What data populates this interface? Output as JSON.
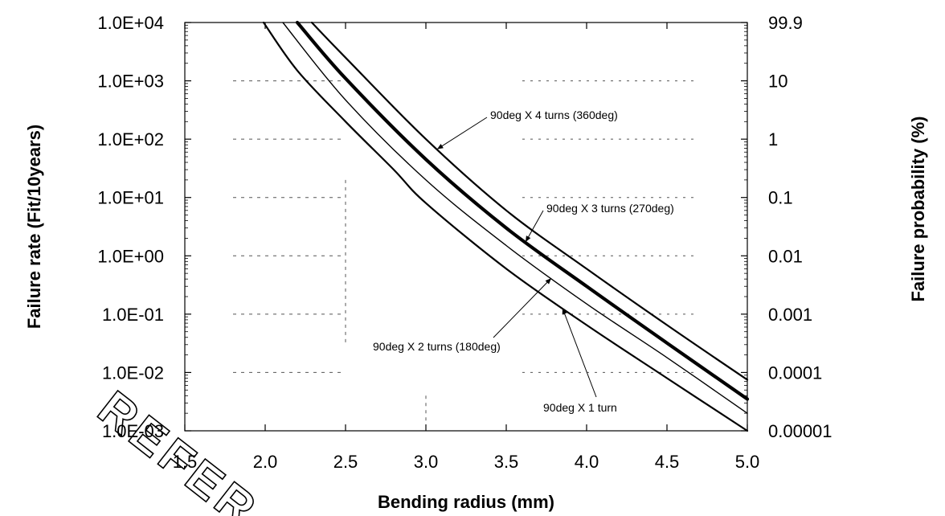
{
  "chart_data": {
    "type": "line",
    "x": [
      1.5,
      2.0,
      2.5,
      3.0,
      3.5,
      4.0,
      4.5,
      5.0
    ],
    "x_ticks": [
      "1.5",
      "2.0",
      "2.5",
      "3.0",
      "3.5",
      "4.0",
      "4.5",
      "5.0"
    ],
    "xlim": [
      1.5,
      5.0
    ],
    "xlabel": "Bending radius (mm)",
    "ylabel": "Failure rate (Fit/10years)",
    "y_scale": "log",
    "ylim": [
      0.001,
      10000
    ],
    "y_ticks": [
      "1.0E+04",
      "1.0E+03",
      "1.0E+02",
      "1.0E+01",
      "1.0E+00",
      "1.0E-01",
      "1.0E-02",
      "1.0E-03"
    ],
    "y2label": "Failure probability (%)",
    "y2_ticks": [
      "99.9",
      "10",
      "1",
      "0.1",
      "0.01",
      "0.001",
      "0.0001",
      "0.00001"
    ],
    "grid": "sparse dashed",
    "series": [
      {
        "name": "90deg X 1 turn",
        "line_weight": "medium",
        "points": [
          [
            1.99,
            10000
          ],
          [
            2.2,
            1500
          ],
          [
            2.5,
            200
          ],
          [
            2.8,
            30
          ],
          [
            3.0,
            8
          ],
          [
            3.5,
            0.6
          ],
          [
            4.0,
            0.065
          ],
          [
            4.5,
            0.008
          ],
          [
            5.0,
            0.001
          ]
        ]
      },
      {
        "name": "90deg X 2 turns (180deg)",
        "line_weight": "thin",
        "points": [
          [
            2.11,
            10000
          ],
          [
            2.5,
            470
          ],
          [
            3.0,
            20
          ],
          [
            3.5,
            1.5
          ],
          [
            4.0,
            0.15
          ],
          [
            4.5,
            0.018
          ],
          [
            5.0,
            0.002
          ]
        ]
      },
      {
        "name": "90deg X 3 turns (270deg)",
        "line_weight": "bold",
        "points": [
          [
            2.2,
            10000
          ],
          [
            2.5,
            1100
          ],
          [
            3.0,
            45
          ],
          [
            3.5,
            3
          ],
          [
            4.0,
            0.3
          ],
          [
            4.5,
            0.032
          ],
          [
            5.0,
            0.0035
          ]
        ]
      },
      {
        "name": "90deg X 4 turns (360deg)",
        "line_weight": "medium",
        "points": [
          [
            2.29,
            10000
          ],
          [
            2.5,
            2500
          ],
          [
            3.0,
            100
          ],
          [
            3.5,
            6
          ],
          [
            4.0,
            0.6
          ],
          [
            4.5,
            0.065
          ],
          [
            5.0,
            0.0075
          ]
        ]
      }
    ],
    "annotations": [
      "90deg X 4 turns (360deg)",
      "90deg X 3 turns (270deg)",
      "90deg X 2 turns (180deg)",
      "90deg X 1 turn"
    ]
  },
  "watermark": {
    "text": "REFER",
    "style": "outlined diagonal letters in lower-left corner"
  }
}
